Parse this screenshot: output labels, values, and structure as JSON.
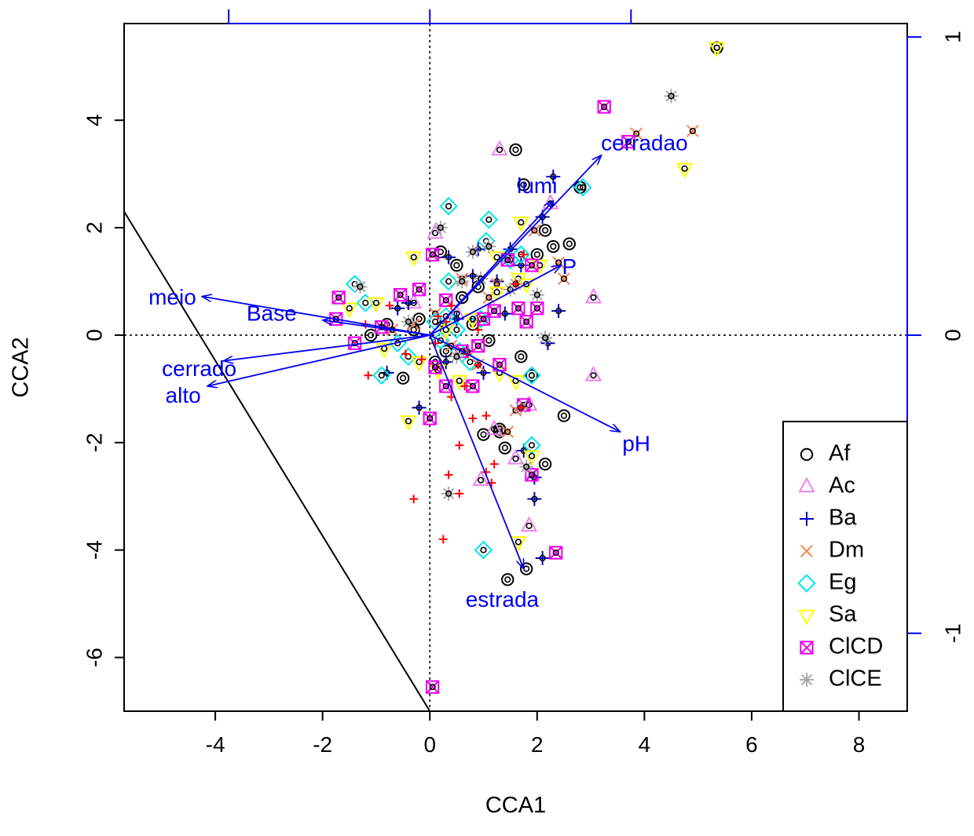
{
  "chart_data": {
    "type": "scatter",
    "subtype": "cca-triplot",
    "xlabel": "CCA1",
    "ylabel": "CCA2",
    "xlim": [
      -5.7,
      8.9
    ],
    "ylim": [
      -7.0,
      5.8
    ],
    "x_ticks": [
      "-4",
      "-2",
      "0",
      "2",
      "4",
      "6",
      "8"
    ],
    "y_ticks": [
      "-6",
      "-4",
      "-2",
      "0",
      "2",
      "4"
    ],
    "top_axis": {
      "ticks": [
        -0.5,
        0,
        0.5
      ],
      "color": "#0000ee",
      "labels_printed": false
    },
    "right_axis": {
      "ticks": [
        "-1",
        "0",
        "1"
      ],
      "values": [
        -1,
        0,
        1
      ],
      "color": "#0000ee"
    },
    "reference_lines": [
      "x=0",
      "y=0"
    ],
    "boundary_line": {
      "from": [
        -5.7,
        2.3
      ],
      "to": [
        0.0,
        -7.0
      ]
    },
    "legend": {
      "position": "bottom-right",
      "entries": [
        {
          "label": "Af",
          "symbol": "circle",
          "color": "#000000"
        },
        {
          "label": "Ac",
          "symbol": "triangle-up",
          "color": "#ee82ee"
        },
        {
          "label": "Ba",
          "symbol": "plus",
          "color": "#0000cd"
        },
        {
          "label": "Dm",
          "symbol": "cross",
          "color": "#ff7f50"
        },
        {
          "label": "Eg",
          "symbol": "diamond",
          "color": "#00e5ee"
        },
        {
          "label": "Sa",
          "symbol": "triangle-down",
          "color": "#ffff00"
        },
        {
          "label": "ClCD",
          "symbol": "square-x",
          "color": "#ee00ee"
        },
        {
          "label": "ClCE",
          "symbol": "asterisk",
          "color": "#a9a9a9"
        }
      ]
    },
    "arrows": [
      {
        "label": "cerradao",
        "end": [
          3.2,
          3.35
        ],
        "label_at": [
          4.0,
          3.55
        ]
      },
      {
        "label": "lumi",
        "end": [
          2.3,
          2.5
        ],
        "label_at": [
          2.0,
          2.75
        ]
      },
      {
        "label": "P",
        "end": [
          2.45,
          1.3
        ],
        "label_at": [
          2.6,
          1.25
        ]
      },
      {
        "label": "meio",
        "end": [
          -4.25,
          0.72
        ],
        "label_at": [
          -4.8,
          0.68
        ]
      },
      {
        "label": "Base",
        "end": [
          -2.0,
          0.28
        ],
        "label_at": [
          -2.95,
          0.38
        ]
      },
      {
        "label": "cerrado",
        "end": [
          -3.85,
          -0.48
        ],
        "label_at": [
          -4.3,
          -0.65
        ]
      },
      {
        "label": "alto",
        "end": [
          -4.15,
          -0.95
        ],
        "label_at": [
          -4.6,
          -1.15
        ]
      },
      {
        "label": "pH",
        "end": [
          3.55,
          -1.8
        ],
        "label_at": [
          3.85,
          -2.05
        ]
      },
      {
        "label": "estrada",
        "end": [
          1.75,
          -4.35
        ],
        "label_at": [
          1.35,
          -4.95
        ]
      }
    ],
    "series": [
      {
        "name": "Af",
        "x": [
          1.6,
          1.75,
          2.3,
          2.6,
          2.15,
          2.0,
          0.2,
          0.5,
          0.9,
          -0.3,
          -0.8,
          0.1,
          1.3,
          2.5,
          1.0,
          1.3,
          1.4,
          2.15,
          1.8,
          1.45,
          -0.5,
          0.3,
          0.6,
          -1.1,
          -0.2,
          0.8,
          1.1,
          1.7,
          1.9,
          2.8,
          5.35
        ],
        "y": [
          3.45,
          2.8,
          1.65,
          1.7,
          1.95,
          1.5,
          1.55,
          1.3,
          0.9,
          0.1,
          0.2,
          -0.5,
          -1.75,
          -1.5,
          -1.85,
          -1.8,
          -2.1,
          -2.4,
          -4.35,
          -4.55,
          -0.8,
          -0.3,
          0.7,
          0.0,
          0.3,
          0.2,
          -0.1,
          -0.4,
          -0.75,
          2.75,
          5.35
        ]
      },
      {
        "name": "Ac",
        "x": [
          1.3,
          2.25,
          3.05,
          3.05,
          1.85,
          0.95,
          1.2,
          0.1,
          -0.3,
          1.6,
          0.5,
          1.85
        ],
        "y": [
          3.45,
          2.45,
          0.7,
          -0.75,
          -3.55,
          -2.7,
          -1.75,
          1.9,
          0.6,
          -2.3,
          0.4,
          -1.3
        ]
      },
      {
        "name": "Ba",
        "x": [
          2.3,
          2.1,
          2.4,
          2.2,
          1.5,
          1.7,
          1.75,
          1.95,
          1.95,
          2.1,
          0.9,
          0.35,
          -0.4,
          -0.8,
          0.2,
          1.25,
          0.5,
          -0.2,
          0.7,
          1.0,
          -0.6,
          0.3,
          1.4,
          0.8
        ],
        "y": [
          2.95,
          2.2,
          0.45,
          -0.15,
          1.6,
          1.3,
          -2.15,
          -2.65,
          -3.05,
          -4.15,
          1.6,
          1.45,
          0.6,
          -0.7,
          0.2,
          1.0,
          0.3,
          -1.35,
          -0.3,
          -0.7,
          0.5,
          -0.5,
          0.4,
          1.1
        ]
      },
      {
        "name": "Dm",
        "x": [
          3.85,
          4.9,
          2.5,
          1.95,
          1.25,
          0.6,
          0.1,
          -0.3,
          1.6,
          0.9,
          1.45,
          2.4,
          -0.7,
          0.4,
          1.1
        ],
        "y": [
          3.75,
          3.8,
          1.05,
          1.95,
          0.95,
          1.05,
          0.4,
          0.2,
          -1.4,
          -0.55,
          -1.8,
          1.35,
          0.1,
          -0.2,
          0.7
        ]
      },
      {
        "name": "Eg",
        "x": [
          2.85,
          0.35,
          1.1,
          1.45,
          1.05,
          0.35,
          -1.4,
          -0.9,
          0.1,
          0.55,
          0.75,
          1.9,
          1.9,
          1.0,
          1.7,
          -0.4,
          0.3,
          -0.6,
          0.95,
          1.5,
          0.2,
          -1.2,
          0.5
        ],
        "y": [
          2.75,
          2.4,
          2.15,
          1.45,
          1.75,
          1.0,
          0.95,
          -0.75,
          0.25,
          -0.3,
          -0.5,
          -0.75,
          -2.05,
          -4.0,
          1.5,
          -0.4,
          0.35,
          -0.15,
          0.3,
          1.4,
          -0.1,
          0.6,
          0.1
        ]
      },
      {
        "name": "Sa",
        "x": [
          5.35,
          4.75,
          1.7,
          1.25,
          -0.3,
          1.65,
          1.9,
          1.65,
          1.8,
          -0.4,
          0.15,
          0.55,
          -1.5,
          -0.85,
          1.6,
          1.25,
          2.05,
          -1.0,
          0.3,
          -0.2,
          0.8,
          1.3
        ],
        "y": [
          5.35,
          3.1,
          2.1,
          1.45,
          1.45,
          1.05,
          -2.25,
          -3.85,
          0.95,
          -1.6,
          -0.65,
          -0.85,
          0.5,
          -0.25,
          -0.85,
          0.8,
          1.3,
          0.6,
          0.1,
          -0.5,
          0.3,
          -0.7
        ]
      },
      {
        "name": "ClCD",
        "x": [
          3.25,
          3.7,
          1.45,
          1.9,
          2.0,
          1.0,
          0.05,
          -0.55,
          -0.2,
          0.3,
          -1.75,
          -1.4,
          1.8,
          0.8,
          0.3,
          0.0,
          1.9,
          1.75,
          2.35,
          0.05,
          1.65,
          1.3,
          -1.7,
          0.9,
          -0.9,
          0.6,
          1.2,
          0.1
        ],
        "y": [
          4.25,
          3.6,
          1.4,
          1.3,
          0.5,
          0.3,
          1.5,
          0.75,
          0.85,
          0.65,
          0.3,
          -0.15,
          0.25,
          -0.95,
          -0.95,
          -1.55,
          -2.6,
          -1.3,
          -4.05,
          -6.55,
          0.5,
          -0.55,
          0.7,
          -0.2,
          0.15,
          -0.3,
          0.45,
          -0.6
        ]
      },
      {
        "name": "ClCE",
        "x": [
          4.5,
          0.2,
          1.1,
          0.8,
          0.95,
          1.5,
          1.6,
          0.35,
          2.0,
          2.15,
          -1.3,
          -0.4,
          0.5,
          1.8,
          0.6,
          1.7
        ],
        "y": [
          4.45,
          2.0,
          1.65,
          1.55,
          1.05,
          0.85,
          0.95,
          -2.95,
          0.75,
          -0.05,
          0.9,
          0.25,
          -0.4,
          -2.45,
          1.0,
          -1.35
        ]
      },
      {
        "name": "sites",
        "x": [
          1.75,
          1.6,
          0.4,
          0.9,
          0.9,
          0.8,
          1.2,
          0.35,
          0.55,
          -0.3,
          1.05,
          1.15,
          0.25,
          -0.45,
          -1.15,
          -1.2,
          0.65,
          0.15,
          1.7,
          1.05,
          -0.15,
          0.55,
          0.3,
          -0.75,
          0.1,
          0.4,
          0.7
        ],
        "y": [
          1.5,
          0.95,
          0.55,
          0.1,
          -0.55,
          -1.55,
          -2.4,
          -2.6,
          -2.95,
          -3.05,
          -2.55,
          -2.75,
          -3.8,
          -0.35,
          -0.75,
          0.2,
          -0.95,
          0.35,
          -1.35,
          -1.5,
          -0.45,
          -2.05,
          0.25,
          0.55,
          -0.15,
          -1.15,
          -0.35
        ]
      }
    ]
  }
}
